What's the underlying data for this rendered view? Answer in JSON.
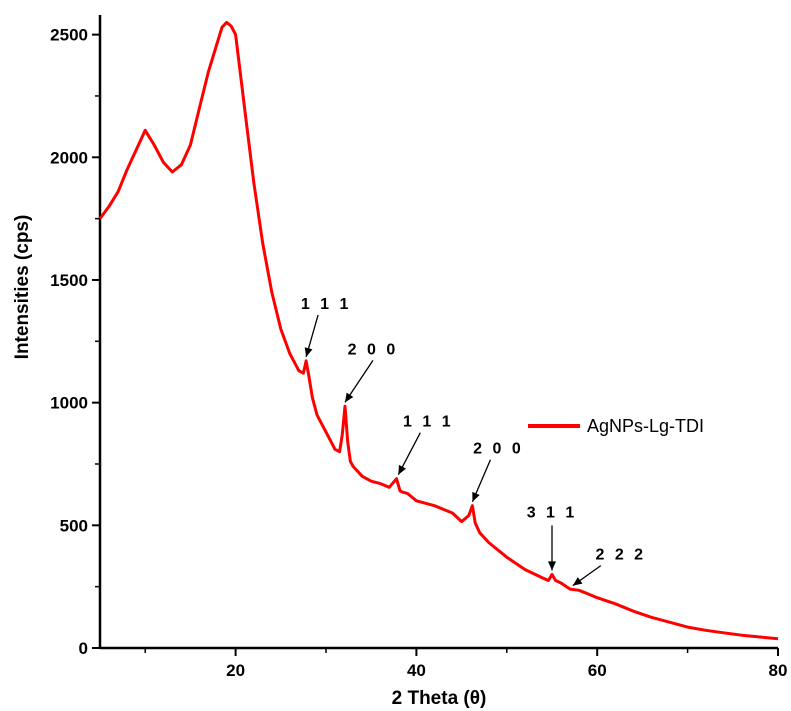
{
  "chart_data": {
    "type": "line",
    "xlabel": "2 Theta (θ)",
    "ylabel": "Intensities (cps)",
    "xlim": [
      5,
      80
    ],
    "ylim": [
      0,
      2580
    ],
    "x_ticks": [
      20,
      40,
      60,
      80
    ],
    "y_ticks": [
      0,
      500,
      1000,
      1500,
      2000,
      2500
    ],
    "grid": false,
    "legend_position": "right",
    "series": [
      {
        "name": "AgNPs-Lg-TDI",
        "color": "#ff0000",
        "x": [
          5,
          6,
          7,
          8,
          9,
          9.5,
          10,
          10.5,
          11,
          12,
          13,
          14,
          15,
          16,
          17,
          18,
          18.5,
          19,
          19.5,
          20,
          21,
          22,
          23,
          24,
          25,
          26,
          27,
          27.5,
          27.8,
          28.1,
          28.5,
          29,
          30,
          31,
          31.5,
          31.8,
          32.1,
          32.4,
          32.7,
          33,
          34,
          35,
          36,
          37,
          37.8,
          38.2,
          38.5,
          39,
          40,
          42,
          44,
          45,
          45.8,
          46.2,
          46.5,
          47,
          48,
          50,
          52,
          54,
          54.6,
          55,
          55.4,
          56,
          57,
          58,
          59,
          60,
          62,
          64,
          66,
          68,
          70,
          72,
          74,
          76,
          78,
          80
        ],
        "y": [
          1750,
          1800,
          1860,
          1950,
          2030,
          2070,
          2110,
          2080,
          2050,
          1980,
          1940,
          1970,
          2050,
          2200,
          2350,
          2470,
          2530,
          2550,
          2535,
          2500,
          2200,
          1900,
          1650,
          1450,
          1300,
          1200,
          1130,
          1120,
          1170,
          1110,
          1020,
          950,
          880,
          810,
          800,
          870,
          985,
          840,
          760,
          740,
          700,
          680,
          670,
          655,
          690,
          640,
          635,
          630,
          600,
          580,
          550,
          515,
          540,
          580,
          510,
          470,
          430,
          370,
          320,
          285,
          275,
          300,
          275,
          265,
          240,
          235,
          220,
          205,
          180,
          150,
          125,
          105,
          85,
          72,
          62,
          52,
          45,
          38
        ]
      }
    ],
    "annotations": [
      {
        "text": "1 1 1",
        "x": 27.8,
        "y": 1170
      },
      {
        "text": "2 0 0",
        "x": 32.1,
        "y": 985
      },
      {
        "text": "1 1 1",
        "x": 38.0,
        "y": 690
      },
      {
        "text": "2 0 0",
        "x": 46.2,
        "y": 580
      },
      {
        "text": "3 1 1",
        "x": 55.0,
        "y": 300
      },
      {
        "text": "2 2 2",
        "x": 57.3,
        "y": 238
      }
    ]
  }
}
